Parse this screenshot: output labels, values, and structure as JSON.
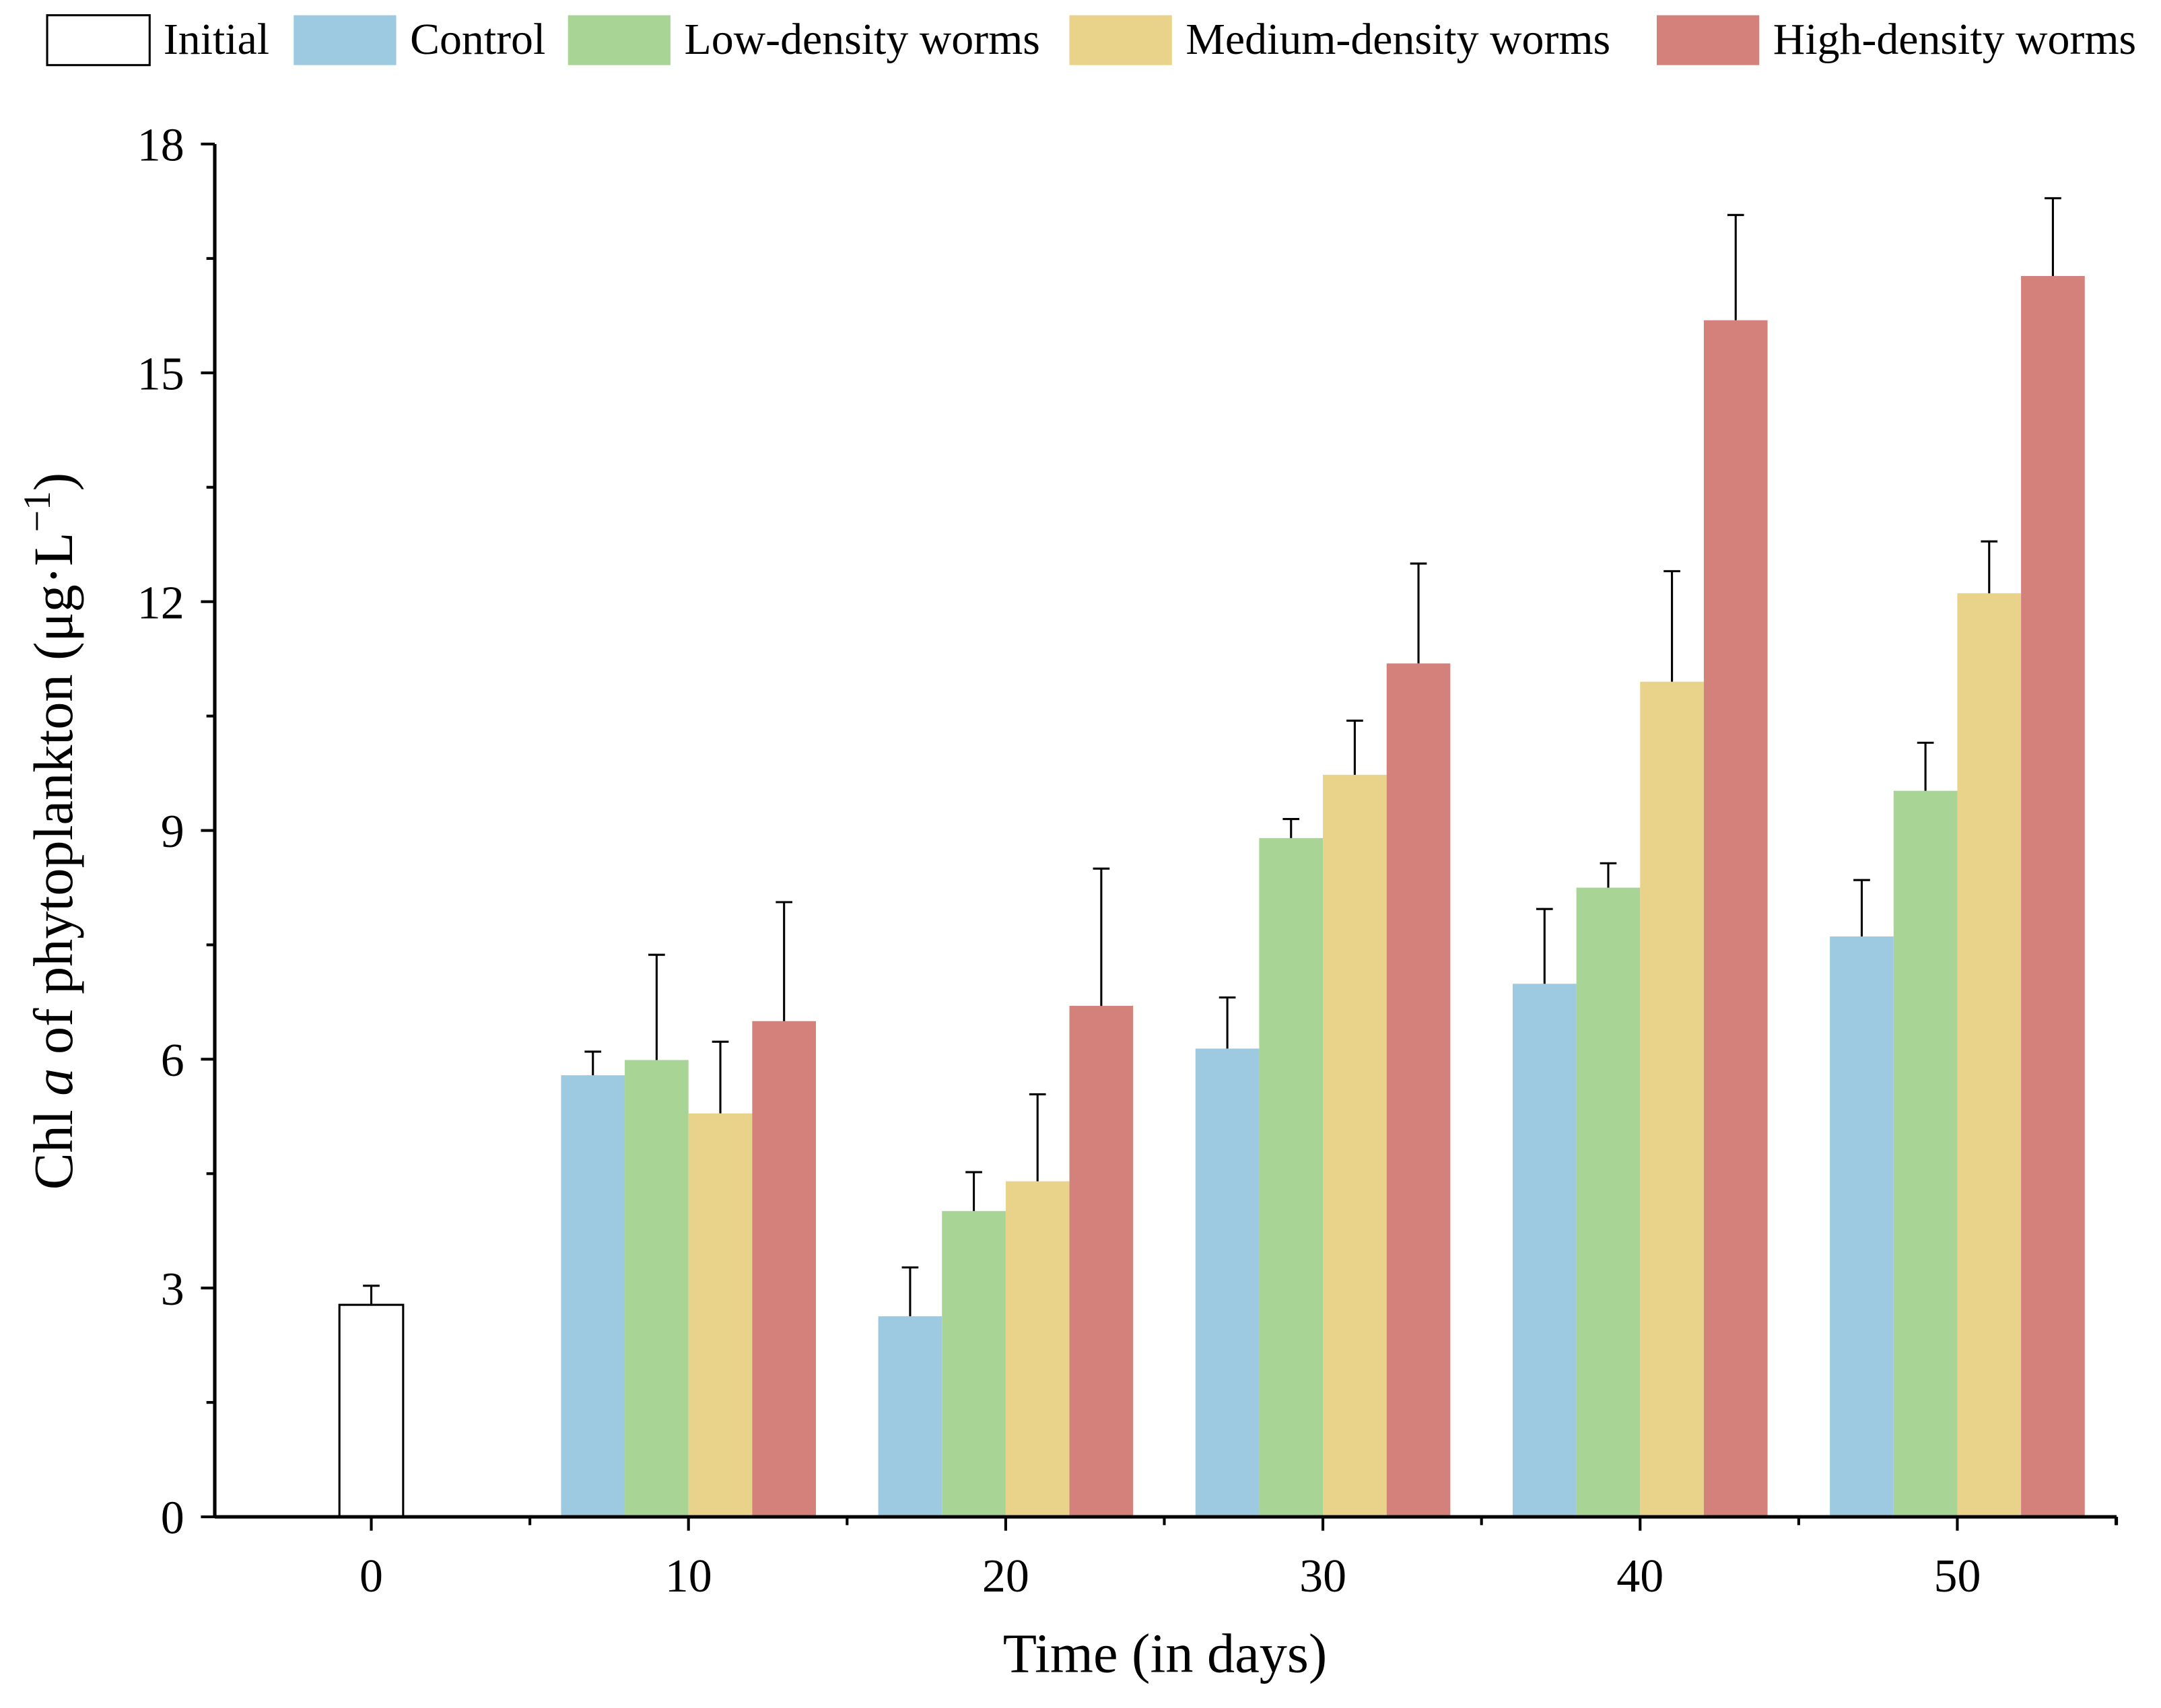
{
  "chart_data": {
    "type": "bar",
    "xlabel": "Time (in days)",
    "ylabel_parts": {
      "pre": "Chl ",
      "italic": "a",
      "post": " of phytoplankton (μg·L",
      "sup": "−1",
      "close": ")"
    },
    "ylim": [
      0,
      18
    ],
    "yticks": [
      0,
      3,
      6,
      9,
      12,
      15,
      18
    ],
    "categories": [
      "0",
      "10",
      "20",
      "30",
      "40",
      "50"
    ],
    "grid": false,
    "legend": "top",
    "series": [
      {
        "name": "Initial",
        "color": "#ffffff",
        "values": [
          2.78,
          null,
          null,
          null,
          null,
          null
        ],
        "errors": [
          0.25,
          null,
          null,
          null,
          null,
          null
        ]
      },
      {
        "name": "Control",
        "color": "#9ecae1",
        "values": [
          null,
          5.79,
          2.63,
          6.14,
          6.99,
          7.61
        ],
        "errors": [
          null,
          0.31,
          0.64,
          0.67,
          0.98,
          0.74
        ]
      },
      {
        "name": "Low-density worms",
        "color": "#a8d496",
        "values": [
          null,
          5.99,
          4.01,
          8.9,
          8.25,
          9.52
        ],
        "errors": [
          null,
          1.38,
          0.51,
          0.25,
          0.32,
          0.63
        ]
      },
      {
        "name": "Medium-density worms",
        "color": "#e9d38b",
        "values": [
          null,
          5.29,
          4.4,
          9.73,
          10.95,
          12.11
        ],
        "errors": [
          null,
          0.94,
          1.14,
          0.71,
          1.45,
          0.68
        ]
      },
      {
        "name": "High-density worms",
        "color": "#d4817c",
        "values": [
          null,
          6.5,
          6.7,
          11.19,
          15.69,
          16.27
        ],
        "errors": [
          null,
          1.56,
          1.8,
          1.31,
          1.38,
          1.02
        ]
      }
    ]
  }
}
